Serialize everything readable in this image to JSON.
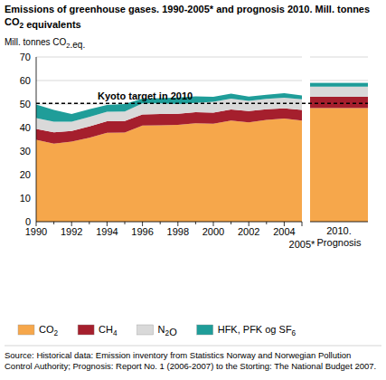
{
  "chart_data": [
    {
      "type": "area",
      "stacked": true,
      "grid": true,
      "legend": "bottom",
      "title": "Emissions of greenhouse gases. 1990-2005* and prognosis 2010. Mill. tonnes CO2 equivalents",
      "y_label": "Mill. tonnes CO2.eq.",
      "source": "Source: Historical data: Emission inventory from Statistics Norway and Norwegian Pollution Control Authority; Prognosis: Report No. 1 (2006-2007) to the Storting: The National Budget 2007.",
      "annotation": {
        "text": "Kyoto target in 2010",
        "value": 50.3
      },
      "categories": [
        "1990",
        null,
        "1992",
        null,
        "1994",
        null,
        "1996",
        null,
        "1998",
        null,
        "2000",
        null,
        "2002",
        null,
        "2004",
        "2005*"
      ],
      "ylim": [
        0,
        70
      ],
      "yticks": [
        0,
        10,
        20,
        30,
        40,
        50,
        60,
        70
      ],
      "series": [
        {
          "name": "CO2",
          "color": "#f6a74b",
          "values": [
            34.8,
            33.2,
            34.0,
            35.7,
            37.8,
            37.9,
            40.9,
            41.0,
            41.2,
            41.8,
            41.6,
            43.0,
            42.2,
            43.3,
            43.8,
            43.0
          ]
        },
        {
          "name": "CH4",
          "color": "#a51f2d",
          "values": [
            4.6,
            4.8,
            4.6,
            4.8,
            4.9,
            4.9,
            4.7,
            4.8,
            4.7,
            4.7,
            4.7,
            4.7,
            4.8,
            4.5,
            4.4,
            4.5
          ]
        },
        {
          "name": "N2O",
          "color": "#d9d9d9",
          "values": [
            4.6,
            4.5,
            3.9,
            4.0,
            4.0,
            4.0,
            4.7,
            4.5,
            4.1,
            4.0,
            4.7,
            4.6,
            4.3,
            4.4,
            4.5,
            4.5
          ]
        },
        {
          "name": "HFK, PFK og SF6",
          "color": "#1f9d99",
          "values": [
            5.8,
            5.0,
            3.3,
            3.3,
            2.9,
            3.2,
            2.0,
            2.2,
            2.8,
            2.8,
            2.1,
            2.1,
            1.9,
            1.7,
            1.9,
            1.7
          ]
        }
      ]
    },
    {
      "type": "bar",
      "stacked": true,
      "categories": [
        "2010. Prognosis"
      ],
      "ylim": [
        0,
        70
      ],
      "yticks": [
        0,
        10,
        20,
        30,
        40,
        50,
        60,
        70
      ],
      "series": [
        {
          "color": "#f6a74b",
          "values": [
            48.3
          ]
        },
        {
          "color": "#a51f2d",
          "values": [
            4.8
          ]
        },
        {
          "color": "#d9d9d9",
          "values": [
            4.3
          ]
        },
        {
          "color": "#1f9d99",
          "values": [
            1.6
          ]
        }
      ]
    }
  ]
}
